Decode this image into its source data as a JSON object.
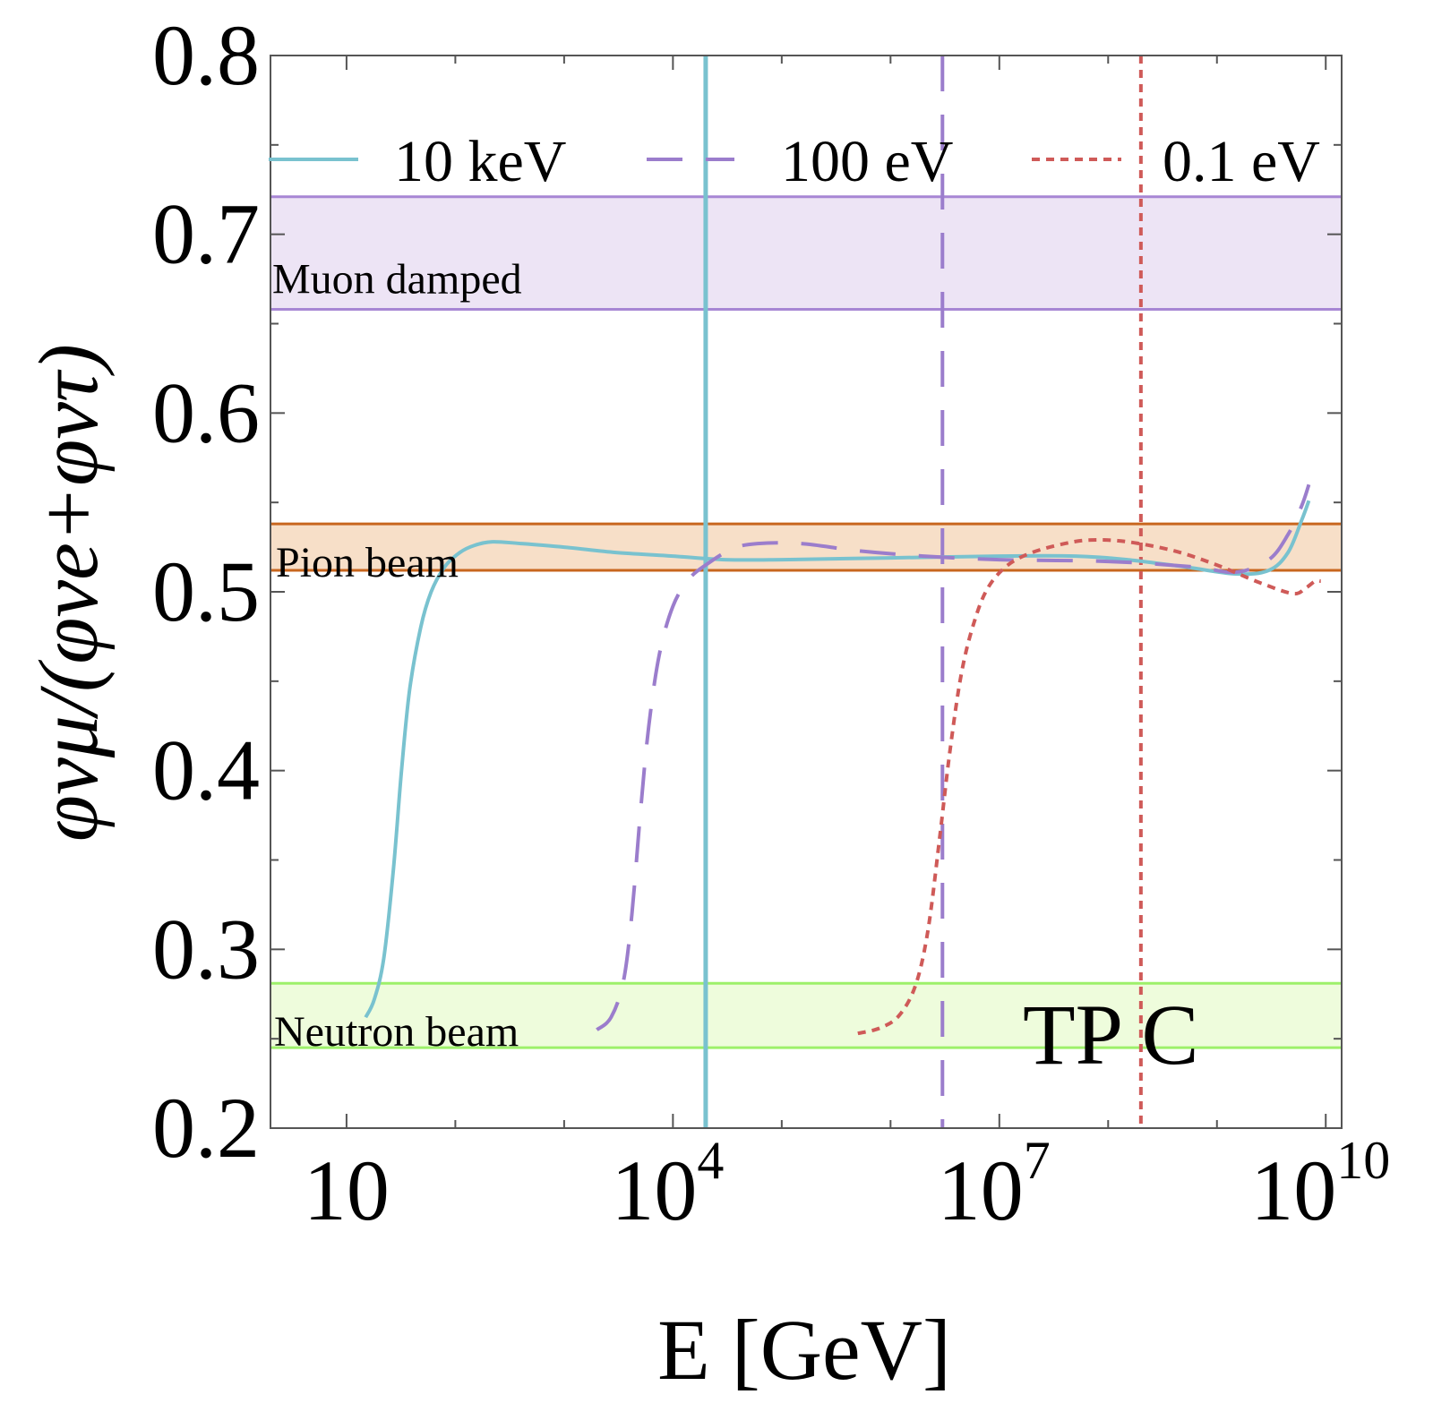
{
  "chart_data": {
    "type": "line",
    "x_scale": "log10",
    "xlabel": "E [GeV]",
    "ylabel": "φνμ/(φνe+φντ)",
    "xlim": [
      2.0,
      14000000000.0
    ],
    "ylim": [
      0.2,
      0.8
    ],
    "x_ticks": [
      {
        "value": 10,
        "base": "10",
        "exp": ""
      },
      {
        "value": 10000,
        "base": "10",
        "exp": "4"
      },
      {
        "value": 10000000,
        "base": "10",
        "exp": "7"
      },
      {
        "value": 10000000000,
        "base": "10",
        "exp": "10"
      }
    ],
    "y_ticks": [
      0.2,
      0.3,
      0.4,
      0.5,
      0.6,
      0.7,
      0.8
    ],
    "y_tick_labels": [
      "0.2",
      "0.3",
      "0.4",
      "0.5",
      "0.6",
      "0.7",
      "0.8"
    ],
    "bands": [
      {
        "label": "Muon damped",
        "ymin": 0.658,
        "ymax": 0.721,
        "fill": "#ede4f5",
        "edge": "#a786d4"
      },
      {
        "label": "Pion beam",
        "ymin": 0.512,
        "ymax": 0.538,
        "fill": "#f7dfc8",
        "edge": "#c8661e"
      },
      {
        "label": "Neutron beam",
        "ymin": 0.245,
        "ymax": 0.281,
        "fill": "#eefcdc",
        "edge": "#9df06a"
      }
    ],
    "series": [
      {
        "name": "10 keV",
        "color": "#79c2cf",
        "style": "solid",
        "vline_x": 20000,
        "points": [
          [
            15,
            0.262
          ],
          [
            18,
            0.272
          ],
          [
            22,
            0.295
          ],
          [
            27,
            0.345
          ],
          [
            32,
            0.4
          ],
          [
            38,
            0.445
          ],
          [
            48,
            0.48
          ],
          [
            60,
            0.5
          ],
          [
            80,
            0.514
          ],
          [
            110,
            0.522
          ],
          [
            150,
            0.526
          ],
          [
            220,
            0.528
          ],
          [
            400,
            0.527
          ],
          [
            1000,
            0.525
          ],
          [
            3000,
            0.522
          ],
          [
            10000,
            0.52
          ],
          [
            30000,
            0.518
          ],
          [
            100000,
            0.518
          ],
          [
            1000000,
            0.519
          ],
          [
            10000000,
            0.52
          ],
          [
            50000000,
            0.52
          ],
          [
            150000000,
            0.518
          ],
          [
            500000000,
            0.514
          ],
          [
            1500000000,
            0.51
          ],
          [
            3000000000,
            0.512
          ],
          [
            4500000000,
            0.522
          ],
          [
            6000000000,
            0.54
          ],
          [
            7000000000,
            0.551
          ]
        ]
      },
      {
        "name": "100 eV",
        "color": "#9b7dcc",
        "style": "dashed",
        "vline_x": 3000000,
        "points": [
          [
            2000,
            0.255
          ],
          [
            2700,
            0.262
          ],
          [
            3500,
            0.282
          ],
          [
            4200,
            0.32
          ],
          [
            5000,
            0.375
          ],
          [
            6000,
            0.425
          ],
          [
            7500,
            0.465
          ],
          [
            10000,
            0.492
          ],
          [
            14000,
            0.507
          ],
          [
            20000,
            0.515
          ],
          [
            35000,
            0.524
          ],
          [
            60000,
            0.527
          ],
          [
            150000,
            0.527
          ],
          [
            500000,
            0.523
          ],
          [
            2000000,
            0.52
          ],
          [
            10000000,
            0.518
          ],
          [
            100000000,
            0.517
          ],
          [
            600000000,
            0.514
          ],
          [
            1500000000,
            0.511
          ],
          [
            3000000000,
            0.518
          ],
          [
            4500000000,
            0.532
          ],
          [
            6000000000,
            0.548
          ],
          [
            7000000000,
            0.56
          ]
        ]
      },
      {
        "name": "0.1 eV",
        "color": "#cf5a58",
        "style": "dotted",
        "vline_x": 200000000,
        "points": [
          [
            500000,
            0.253
          ],
          [
            800000,
            0.256
          ],
          [
            1200000,
            0.263
          ],
          [
            1700000,
            0.28
          ],
          [
            2200000,
            0.31
          ],
          [
            2800000,
            0.36
          ],
          [
            3500000,
            0.41
          ],
          [
            4500000,
            0.455
          ],
          [
            6000000,
            0.485
          ],
          [
            8000000,
            0.503
          ],
          [
            12000000,
            0.515
          ],
          [
            20000000,
            0.522
          ],
          [
            40000000,
            0.527
          ],
          [
            70000000,
            0.529
          ],
          [
            150000000,
            0.528
          ],
          [
            400000000,
            0.523
          ],
          [
            1000000000,
            0.515
          ],
          [
            2500000000,
            0.505
          ],
          [
            5000000000,
            0.499
          ],
          [
            6500000000,
            0.502
          ],
          [
            8000000000,
            0.506
          ],
          [
            9000000000,
            0.506
          ]
        ]
      }
    ],
    "annotation": "TP C"
  }
}
